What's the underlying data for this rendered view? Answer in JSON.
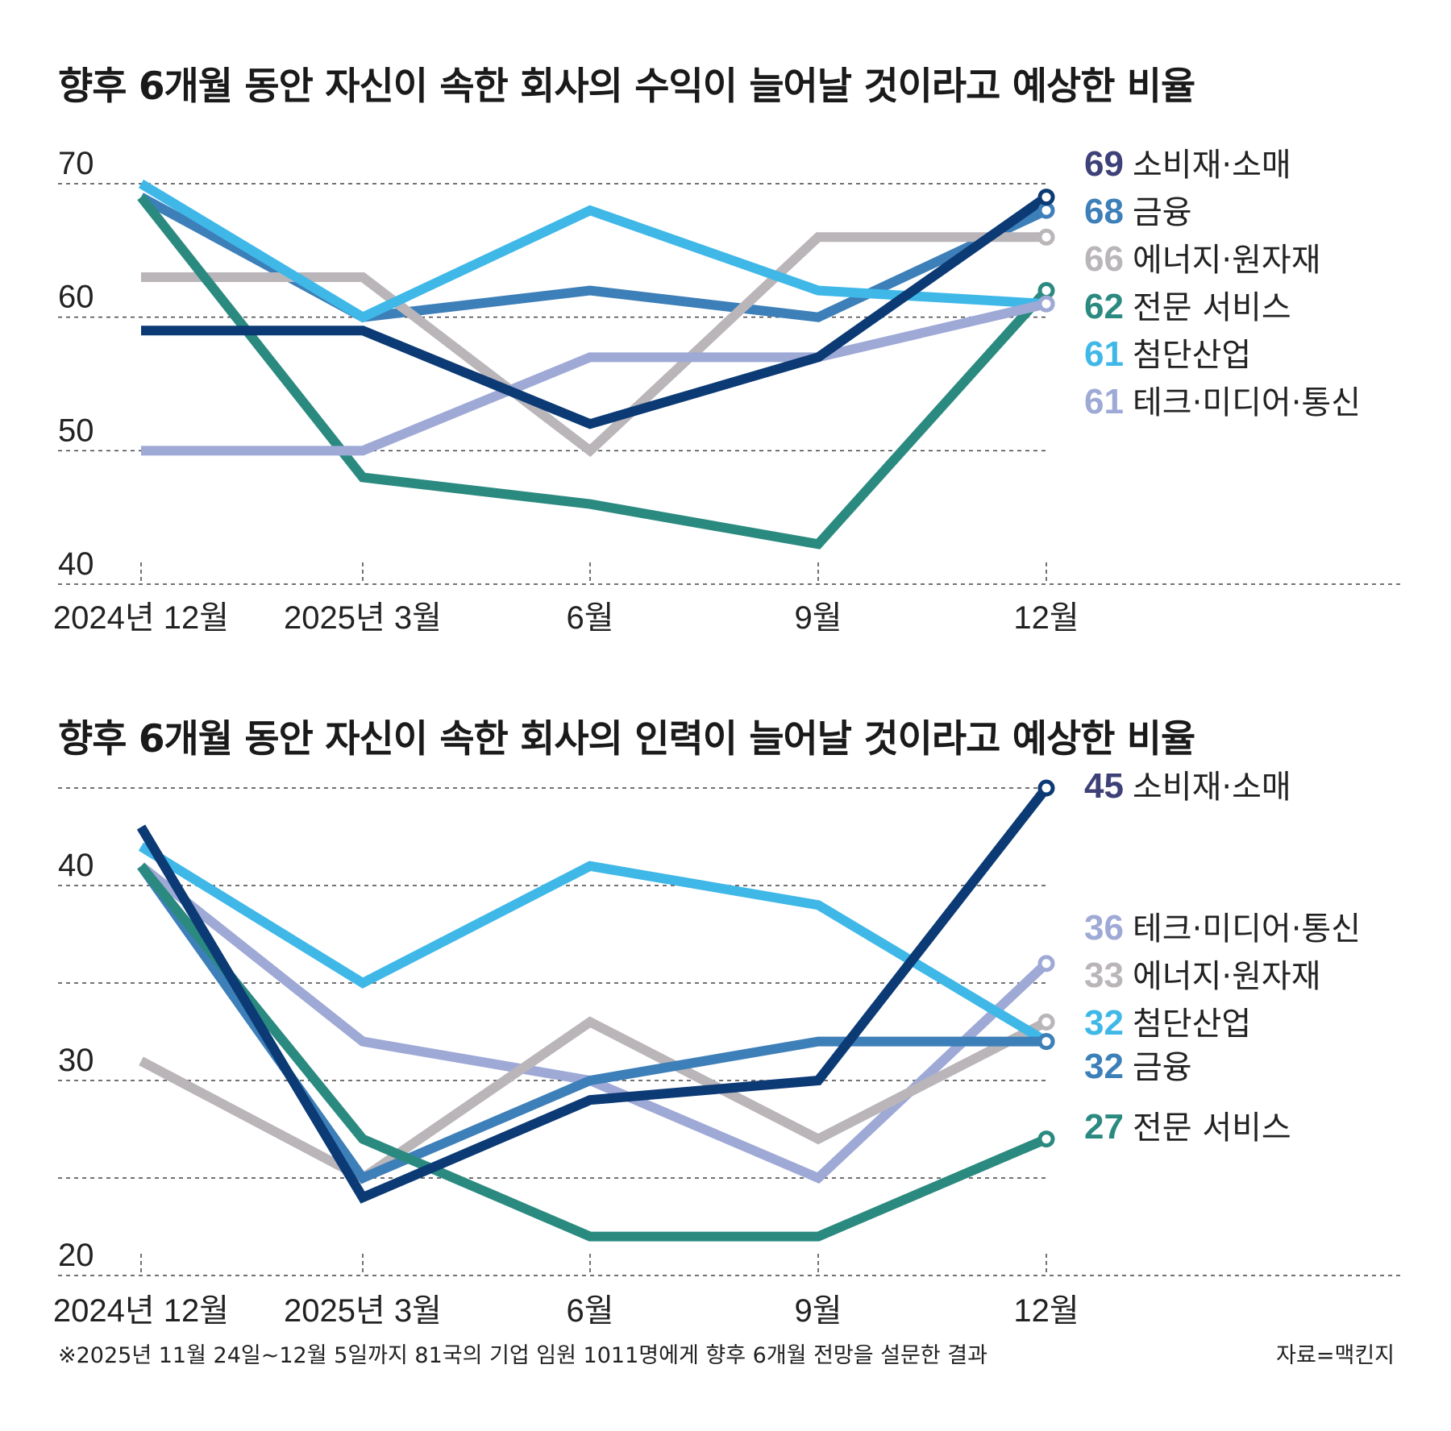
{
  "colors": {
    "consumer": "#0b3a75",
    "finance": "#3d7fb8",
    "energy": "#b9b5b9",
    "professional": "#2b8a80",
    "advanced": "#3fb8e8",
    "tech": "#9ea9d6",
    "consumer_label": "#3e4177"
  },
  "footnote": "※2025년 11월 24일~12월 5일까지 81국의 기업 임원 1011명에게 향후 6개월 전망을 설문한 결과",
  "source": "자료=맥킨지",
  "chart_data": [
    {
      "type": "line",
      "title": "향후 6개월 동안 자신이 속한 회사의 수익이 늘어날 것이라고 예상한 비율",
      "categories": [
        "2024년 12월",
        "2025년 3월",
        "6월",
        "9월",
        "12월"
      ],
      "ylim": [
        40,
        70
      ],
      "yticks": [
        "40",
        "50",
        "60",
        "70"
      ],
      "grid": true,
      "legend_placement": "right",
      "series": [
        {
          "name": "소비재·소매",
          "label": "69",
          "color_key": "consumer",
          "values": [
            59,
            59,
            52,
            57,
            69
          ]
        },
        {
          "name": "금융",
          "label": "68",
          "color_key": "finance",
          "values": [
            69,
            60,
            62,
            60,
            68
          ]
        },
        {
          "name": "에너지·원자재",
          "label": "66",
          "color_key": "energy",
          "values": [
            63,
            63,
            50,
            66,
            66
          ]
        },
        {
          "name": "전문 서비스",
          "label": "62",
          "color_key": "professional",
          "values": [
            69,
            48,
            46,
            43,
            62
          ]
        },
        {
          "name": "첨단산업",
          "label": "61",
          "color_key": "advanced",
          "values": [
            70,
            60,
            68,
            62,
            61
          ]
        },
        {
          "name": "테크·미디어·통신",
          "label": "61",
          "color_key": "tech",
          "values": [
            50,
            50,
            57,
            57,
            61
          ]
        }
      ]
    },
    {
      "type": "line",
      "title": "향후 6개월 동안 자신이 속한 회사의 인력이 늘어날 것이라고 예상한 비율",
      "categories": [
        "2024년 12월",
        "2025년 3월",
        "6월",
        "9월",
        "12월"
      ],
      "ylim": [
        20,
        45
      ],
      "yticks": [
        "20",
        "30",
        "40"
      ],
      "grid": true,
      "legend_placement": "right",
      "series": [
        {
          "name": "소비재·소매",
          "label": "45",
          "color_key": "consumer",
          "values": [
            43,
            24,
            29,
            30,
            45
          ]
        },
        {
          "name": "테크·미디어·통신",
          "label": "36",
          "color_key": "tech",
          "values": [
            41,
            32,
            30,
            25,
            36
          ]
        },
        {
          "name": "에너지·원자재",
          "label": "33",
          "color_key": "energy",
          "values": [
            31,
            25,
            33,
            27,
            33
          ]
        },
        {
          "name": "첨단산업",
          "label": "32",
          "color_key": "advanced",
          "values": [
            42,
            35,
            41,
            39,
            32
          ]
        },
        {
          "name": "금융",
          "label": "32",
          "color_key": "finance",
          "values": [
            41,
            25,
            30,
            32,
            32
          ]
        },
        {
          "name": "전문 서비스",
          "label": "27",
          "color_key": "professional",
          "values": [
            41,
            27,
            22,
            22,
            27
          ]
        }
      ]
    }
  ]
}
